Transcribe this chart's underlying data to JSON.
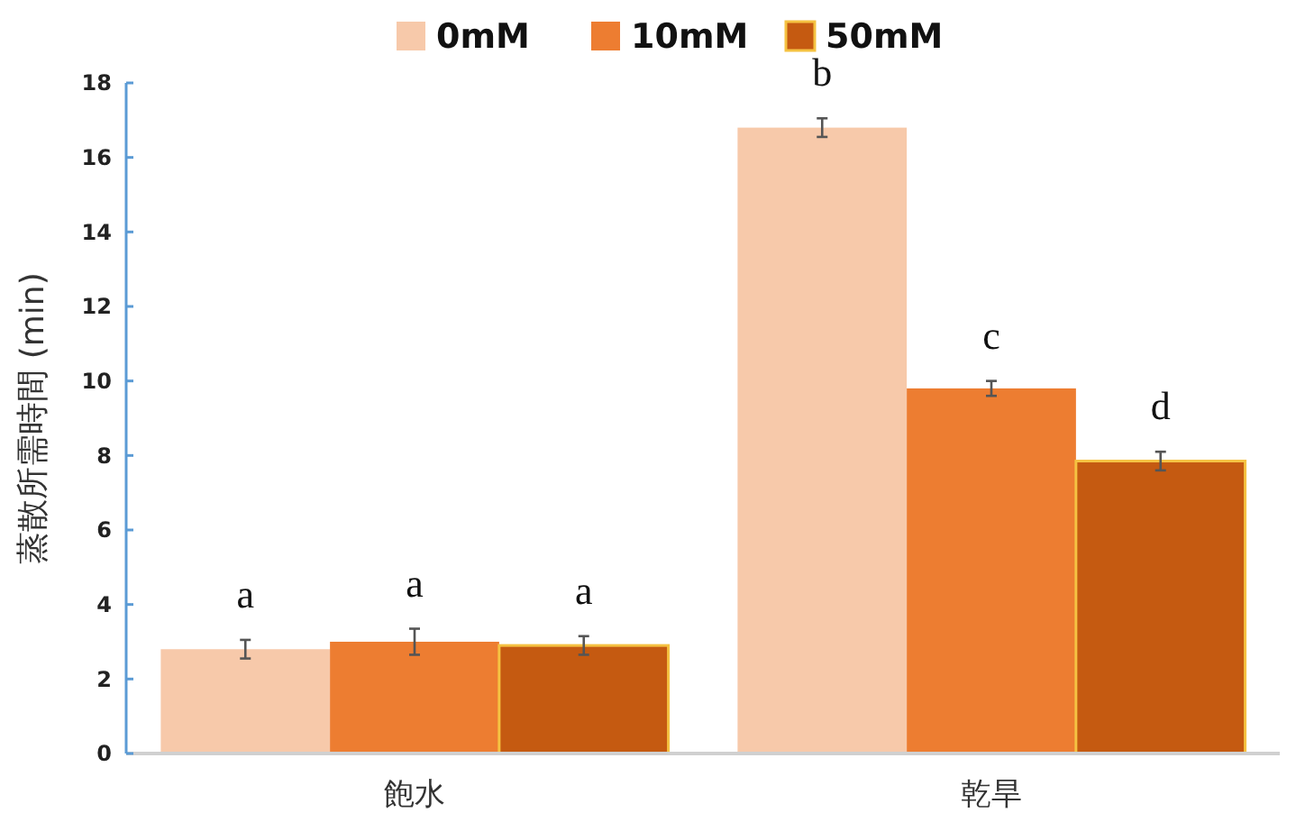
{
  "chart_data": {
    "type": "bar",
    "ylabel": "蒸散所需時間 (min)",
    "categories": [
      "飽水",
      "乾旱"
    ],
    "series": [
      {
        "name": "0mM",
        "color": "#f7c9aa",
        "values": [
          2.8,
          16.8
        ],
        "errors": [
          0.25,
          0.25
        ]
      },
      {
        "name": "10mM",
        "color": "#ed7d31",
        "values": [
          3.0,
          9.8
        ],
        "errors": [
          0.35,
          0.2
        ]
      },
      {
        "name": "50mM",
        "color": "#c55a11",
        "values": [
          2.9,
          7.85
        ],
        "errors": [
          0.25,
          0.25
        ]
      }
    ],
    "annotations": [
      "a",
      "a",
      "a",
      "b",
      "c",
      "d"
    ],
    "ylim": [
      0,
      18
    ],
    "yticks": [
      0,
      2,
      4,
      6,
      8,
      10,
      12,
      14,
      16,
      18
    ],
    "legend": "top",
    "grid": false
  }
}
